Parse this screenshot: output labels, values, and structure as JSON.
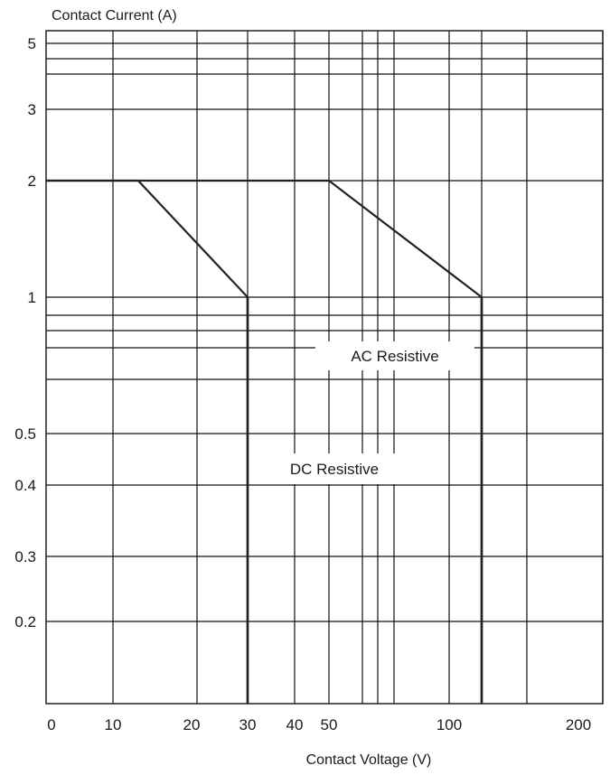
{
  "chart_data": {
    "type": "line",
    "ylabel": "Contact Current (A)",
    "xlabel": "Contact Voltage (V)",
    "y_scale": "log",
    "ylim": [
      0.1,
      5.2
    ],
    "y_ticks": [
      {
        "value": 5,
        "label": "5"
      },
      {
        "value": 3,
        "label": "3"
      },
      {
        "value": 2,
        "label": "2"
      },
      {
        "value": 1,
        "label": "1"
      },
      {
        "value": 0.5,
        "label": "0.5"
      },
      {
        "value": 0.4,
        "label": "0.4"
      },
      {
        "value": 0.3,
        "label": "0.3"
      },
      {
        "value": 0.2,
        "label": "0.2"
      }
    ],
    "x_ticks": [
      {
        "value": 0,
        "label": "0"
      },
      {
        "value": 10,
        "label": "10"
      },
      {
        "value": 20,
        "label": "20"
      },
      {
        "value": 30,
        "label": "30"
      },
      {
        "value": 40,
        "label": "40"
      },
      {
        "value": 50,
        "label": "50"
      },
      {
        "value": 100,
        "label": "100"
      },
      {
        "value": 200,
        "label": "200"
      }
    ],
    "x_gridlines": [
      10,
      20,
      30,
      40,
      50,
      60,
      70,
      80,
      100,
      120,
      150,
      200
    ],
    "y_gridlines": [
      5,
      4.5,
      4,
      3,
      2,
      1,
      0.9,
      0.8,
      0.7,
      0.6,
      0.5,
      0.4,
      0.3,
      0.2
    ],
    "grid": true,
    "series": [
      {
        "name": "DC Resistive",
        "points": [
          [
            0,
            2
          ],
          [
            13,
            2
          ],
          [
            30,
            1
          ],
          [
            30,
            0.1
          ]
        ]
      },
      {
        "name": "AC Resistive",
        "points": [
          [
            0,
            2
          ],
          [
            50,
            2
          ],
          [
            120,
            1
          ],
          [
            120,
            0.1
          ]
        ]
      }
    ]
  }
}
